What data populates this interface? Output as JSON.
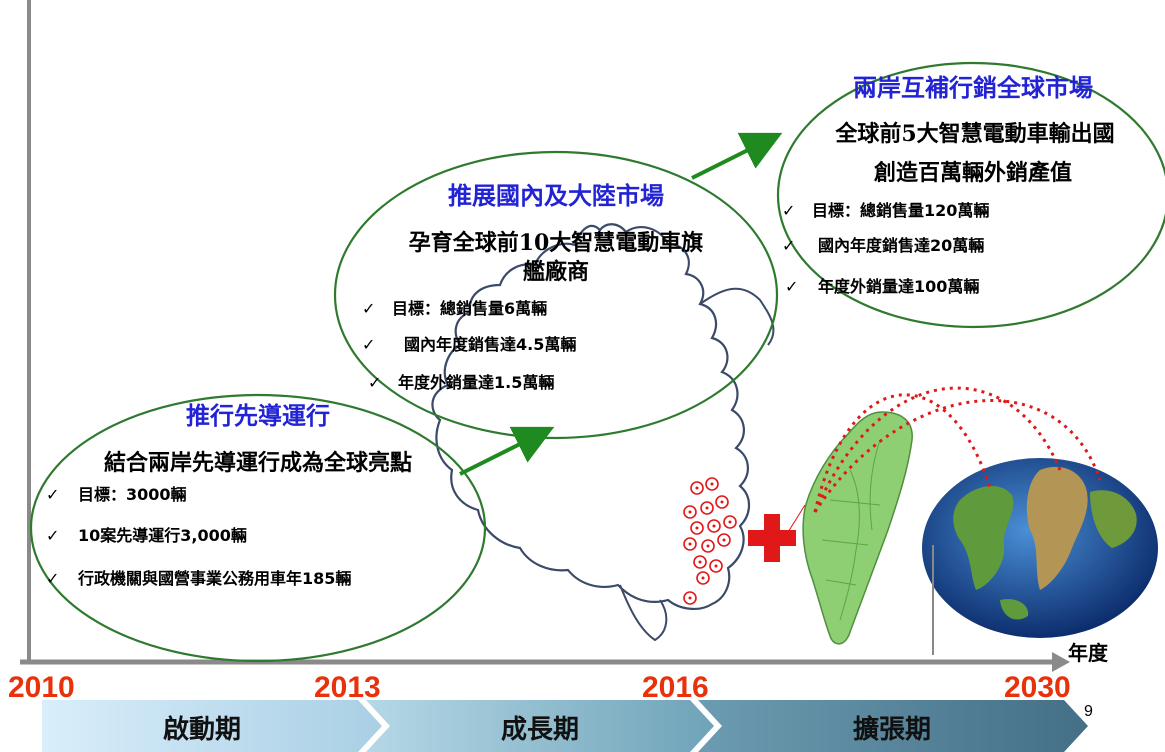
{
  "stages": [
    {
      "title": "推行先導運行",
      "subtitle": "結合兩岸先導運行成為全球亮點",
      "items": [
        "目標：3000輛",
        "10案先導運行3,000輛",
        "行政機關與國營事業公務用車年185輛"
      ]
    },
    {
      "title": "推展國內及大陸市場",
      "subtitle_line1": "孕育全球前10大智慧電動車旗",
      "subtitle_line2": "艦廠商",
      "items": [
        "目標：總銷售量6萬輛",
        "國內年度銷售達4.5萬輛",
        "年度外銷量達1.5萬輛"
      ]
    },
    {
      "title": "兩岸互補行銷全球市場",
      "subtitle_line1": "全球前5大智慧電動車輸出國",
      "subtitle_line2": "創造百萬輛外銷產值",
      "items": [
        "目標：總銷售量120萬輛",
        "國內年度銷售達20萬輛",
        "年度外銷量達100萬輛"
      ]
    }
  ],
  "check_mark": "✓",
  "axis_label": "年度",
  "years": [
    "2010",
    "2013",
    "2016",
    "2030"
  ],
  "phases": [
    "啟動期",
    "成長期",
    "擴張期"
  ],
  "page_number": "9",
  "colors": {
    "title_blue": "#2323d6",
    "year_red": "#e8320c",
    "ellipse_border": "#2f7a2f",
    "arrow_green": "#1f8a1f",
    "taiwan_green": "#7cc46a",
    "ocean_blue": "#2060b0",
    "cross_red": "#e01818"
  },
  "icons": [
    "china-map-outline",
    "red-cross-icon",
    "taiwan-map",
    "globe-icon"
  ]
}
